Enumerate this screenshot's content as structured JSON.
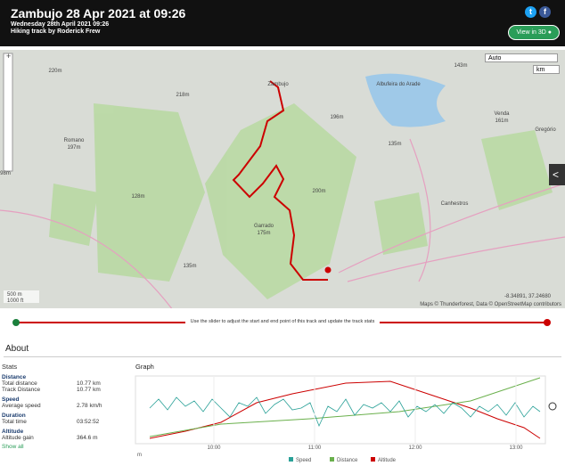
{
  "header": {
    "title": "Zambujo 28 Apr 2021 at 09:26",
    "subtitle": "Wednesday 28th April 2021 09:26",
    "author": "Hiking track by Roderick Frew",
    "button": "View in 3D"
  },
  "map": {
    "labels": [
      "220m",
      "218m",
      "Romano",
      "197m",
      "Zambujo",
      "Albufeira do Arade",
      "143m",
      "196m",
      "Venda",
      "161m",
      "Gregório",
      "135m",
      "128m",
      "200m",
      "Canhestros",
      "Garrado",
      "175m",
      "135m",
      "98m"
    ],
    "mode": "Auto",
    "unit": "km",
    "scale_metric": "500 m",
    "scale_imperial": "1000 ft",
    "coords": "-8.34891, 37.24680",
    "attribution": "Maps © Thunderforest, Data © OpenStreetMap contributors"
  },
  "slider": {
    "instruction": "Use the slider to adjust the start and end point of this track and update the track stats"
  },
  "about": {
    "title": "About"
  },
  "stats": {
    "title": "Stats",
    "groups": [
      {
        "heading": "Distance",
        "rows": [
          [
            "Total distance",
            "10.77 km"
          ],
          [
            "Track Distance",
            "10.77 km"
          ]
        ]
      },
      {
        "heading": "Speed",
        "rows": [
          [
            "Average speed",
            "2.78 km/h"
          ]
        ]
      },
      {
        "heading": "Duration",
        "rows": [
          [
            "Total time",
            "03:52:52"
          ]
        ]
      },
      {
        "heading": "Altitude",
        "rows": [
          [
            "Altitude gain",
            "364.6 m"
          ]
        ]
      }
    ],
    "show_all": "Show all"
  },
  "graph": {
    "title": "Graph",
    "xticks": [
      "10:00",
      "11:00",
      "12:00",
      "13:00"
    ],
    "unit": "m",
    "legend": [
      "Speed",
      "Distance",
      "Altitude"
    ]
  }
}
